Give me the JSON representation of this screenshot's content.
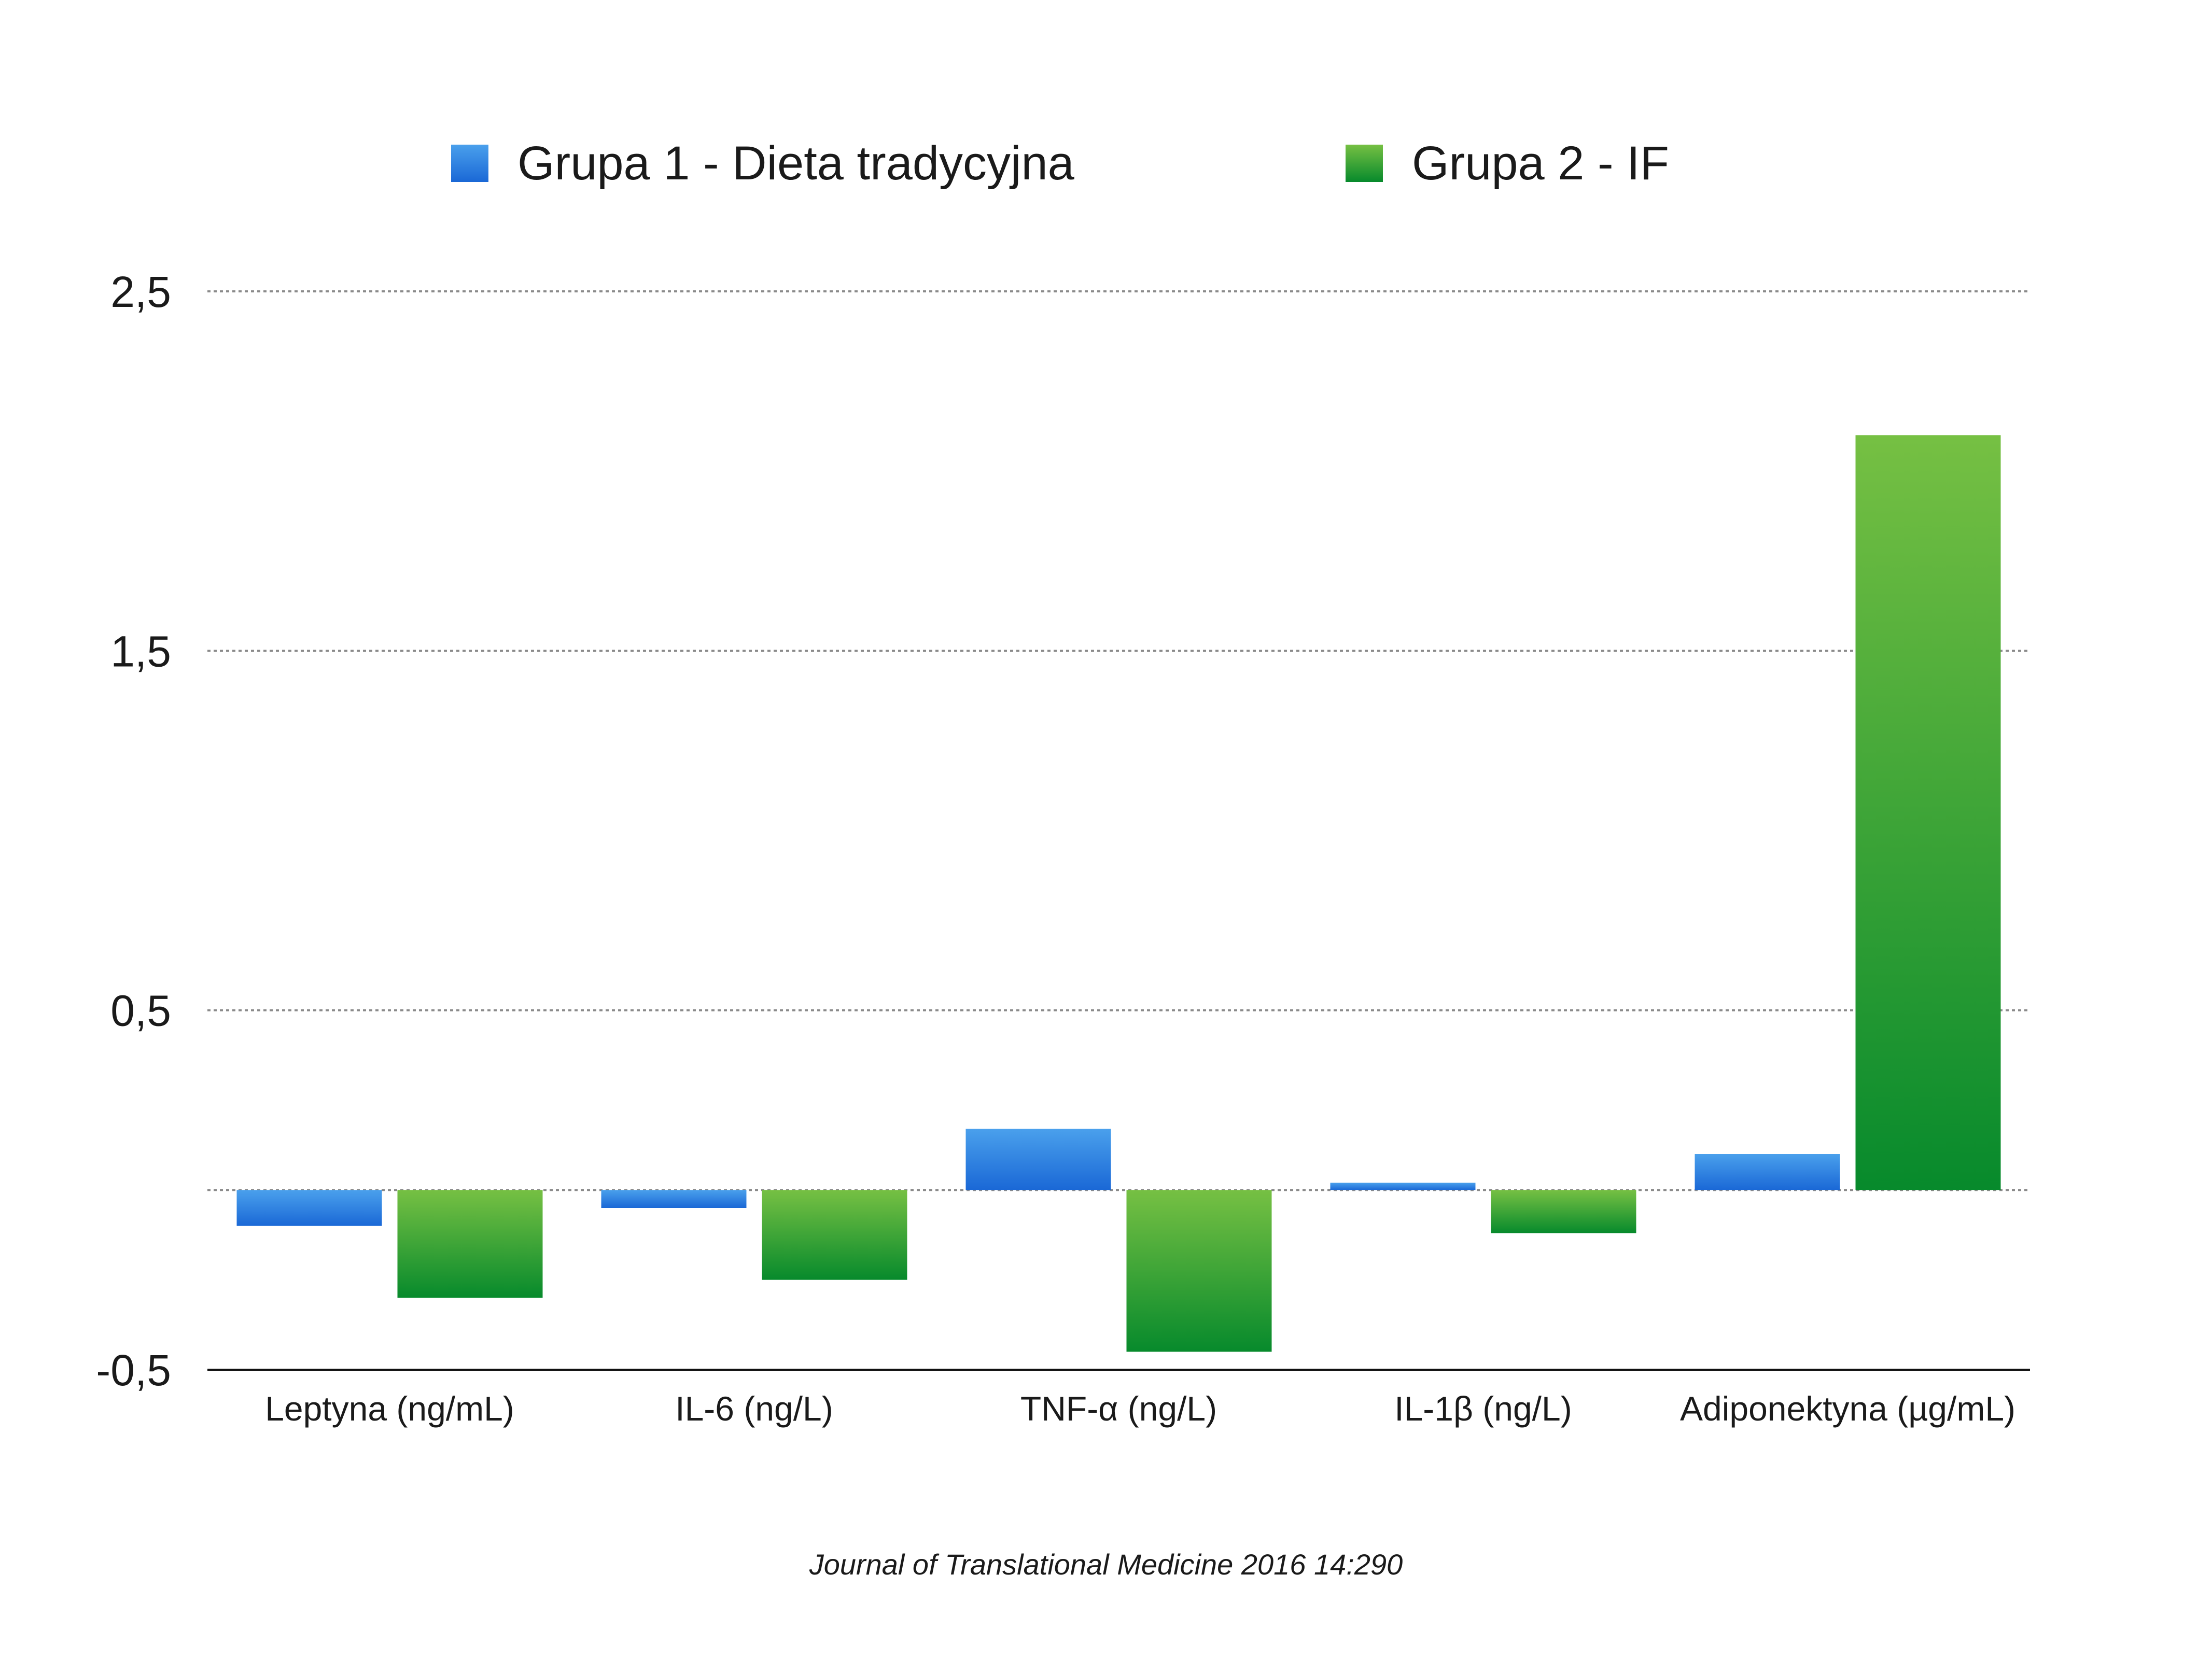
{
  "chart_data": {
    "type": "bar",
    "categories": [
      "Leptyna (ng/mL)",
      "IL-6 (ng/L)",
      "TNF-α (ng/L)",
      "IL-1β (ng/L)",
      "Adiponektyna (µg/mL)"
    ],
    "series": [
      {
        "name": "Grupa 1 - Dieta tradycyjna",
        "values": [
          -0.1,
          -0.05,
          0.17,
          0.02,
          0.1
        ],
        "color_top": "#4aa0ec",
        "color_bottom": "#1a68d6"
      },
      {
        "name": "Grupa 2 - IF",
        "values": [
          -0.3,
          -0.25,
          -0.45,
          -0.12,
          2.1
        ],
        "color_top": "#76c043",
        "color_bottom": "#078a2c"
      }
    ],
    "yticks": [
      -0.5,
      0.5,
      1.5,
      2.5
    ],
    "ytick_labels": [
      "-0,5",
      "0,5",
      "1,5",
      "2,5"
    ],
    "ylim": [
      -0.5,
      2.5
    ],
    "grid": "dotted horizontal",
    "legend_position": "top",
    "title": "",
    "xlabel": "",
    "ylabel": ""
  },
  "source": "Journal of Translational Medicine 2016 14:290"
}
